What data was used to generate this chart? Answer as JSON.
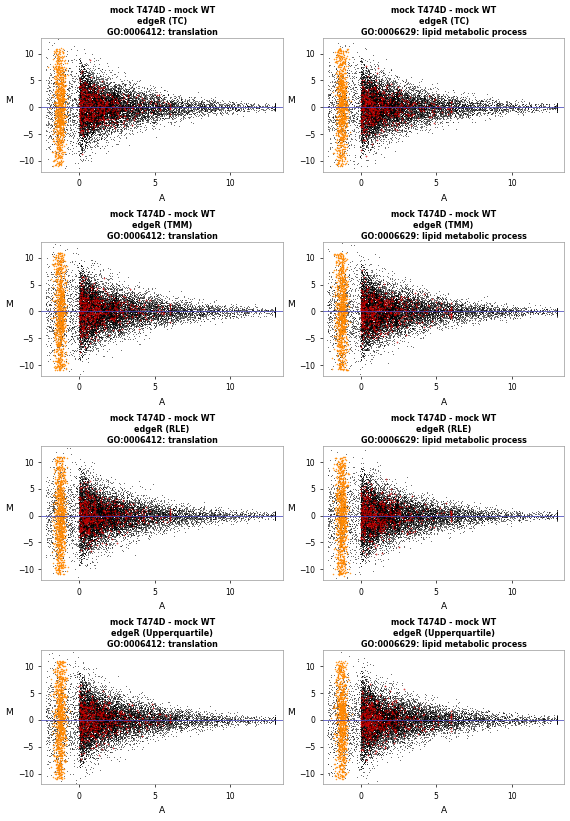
{
  "plots": [
    {
      "title": "mock T474D - mock WT\nedgeR (TC)\nGO:0006412: translation",
      "row": 0,
      "col": 0
    },
    {
      "title": "mock T474D - mock WT\nedgeR (TC)\nGO:0006629: lipid metabolic process",
      "row": 0,
      "col": 1
    },
    {
      "title": "mock T474D - mock WT\nedgeR (TMM)\nGO:0006412: translation",
      "row": 1,
      "col": 0
    },
    {
      "title": "mock T474D - mock WT\nedgeR (TMM)\nGO:0006629: lipid metabolic process",
      "row": 1,
      "col": 1
    },
    {
      "title": "mock T474D - mock WT\nedgeR (RLE)\nGO:0006412: translation",
      "row": 2,
      "col": 0
    },
    {
      "title": "mock T474D - mock WT\nedgeR (RLE)\nGO:0006629: lipid metabolic process",
      "row": 2,
      "col": 1
    },
    {
      "title": "mock T474D - mock WT\nedgeR (Upperquartile)\nGO:0006412: translation",
      "row": 3,
      "col": 0
    },
    {
      "title": "mock T474D - mock WT\nedgeR (Upperquartile)\nGO:0006629: lipid metabolic process",
      "row": 3,
      "col": 1
    }
  ],
  "xlim": [
    -2.5,
    13.5
  ],
  "ylim": [
    -12,
    13
  ],
  "xticks": [
    0,
    5,
    10
  ],
  "yticks": [
    -10,
    -5,
    0,
    5,
    10
  ],
  "xlabel": "A",
  "ylabel": "M",
  "background_color": "#ffffff",
  "dot_color_black": "#000000",
  "dot_color_red": "#cc0000",
  "dot_color_orange": "#ff8800",
  "hline_color": "#4444bb",
  "diagonal_color": "#000000",
  "title_fontsize": 5.8,
  "axis_fontsize": 6.5,
  "tick_fontsize": 5.5
}
